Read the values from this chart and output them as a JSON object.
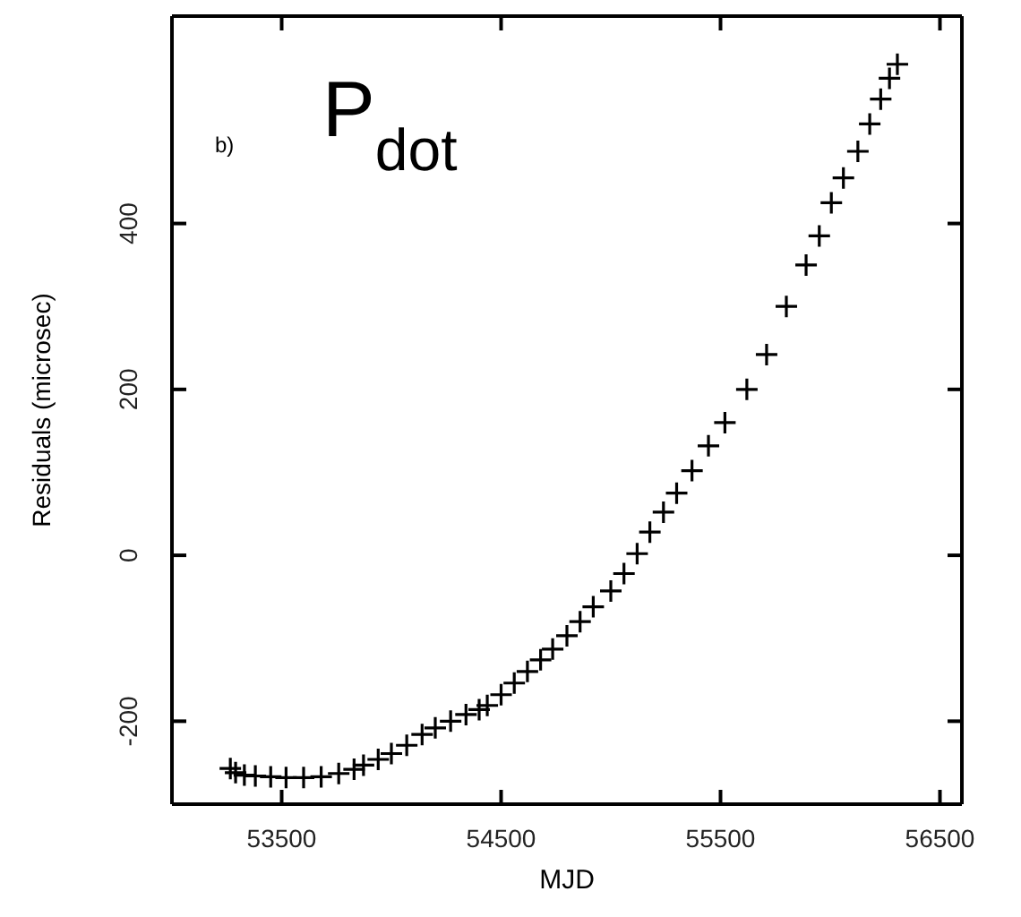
{
  "chart_data": {
    "type": "scatter",
    "xlabel": "MJD",
    "ylabel": "Residuals (microsec)",
    "annotations": [
      "b)",
      "P$_{dot}$"
    ],
    "xlim": [
      53000,
      56600
    ],
    "xticks": [
      53500,
      54500,
      55500,
      56500
    ],
    "ylim": [
      -300,
      650
    ],
    "yticks": [
      -200,
      0,
      200,
      400
    ],
    "marker": "cross",
    "grid": false,
    "series": [
      {
        "color": "#000000",
        "x": [
          53266,
          53290,
          53330,
          53380,
          53450,
          53520,
          53600,
          53680,
          53760,
          53830,
          53873,
          53940,
          54000,
          54070,
          54140,
          54200,
          54270,
          54340,
          54400,
          54437,
          54500,
          54560,
          54620,
          54680,
          54735,
          54800,
          54860,
          54920,
          55000,
          55060,
          55120,
          55178,
          55240,
          55300,
          55370,
          55445,
          55520,
          55620,
          55710,
          55800,
          55890,
          55950,
          56005,
          56060,
          56126,
          56180,
          56230,
          56270,
          56306
        ],
        "values": [
          -257,
          -262,
          -265,
          -266,
          -267,
          -268,
          -268,
          -267,
          -263,
          -258,
          -253,
          -246,
          -239,
          -229,
          -216,
          -208,
          -200,
          -192,
          -186,
          -181,
          -168,
          -154,
          -140,
          -126,
          -113,
          -97,
          -80,
          -62,
          -43,
          -22,
          2,
          28,
          52,
          75,
          102,
          132,
          160,
          200,
          242,
          300,
          350,
          385,
          425,
          455,
          487,
          520,
          550,
          575,
          592
        ]
      }
    ]
  }
}
